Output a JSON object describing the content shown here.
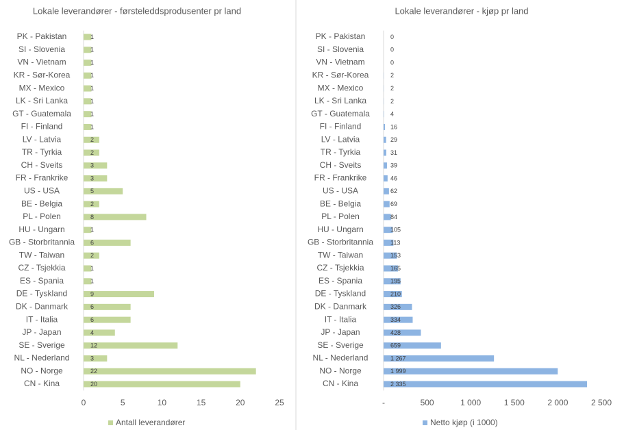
{
  "chart_data": [
    {
      "type": "bar",
      "orientation": "horizontal",
      "title": "Lokale leverandører - førsteleddsprodusenter pr land",
      "categories": [
        "PK - Pakistan",
        "SI - Slovenia",
        "VN - Vietnam",
        "KR - Sør-Korea",
        "MX - Mexico",
        "LK - Sri Lanka",
        "GT - Guatemala",
        "FI - Finland",
        "LV - Latvia",
        "TR - Tyrkia",
        "CH - Sveits",
        "FR - Frankrike",
        "US - USA",
        "BE - Belgia",
        "PL - Polen",
        "HU - Ungarn",
        "GB - Storbritannia",
        "TW - Taiwan",
        "CZ - Tsjekkia",
        "ES - Spania",
        "DE - Tyskland",
        "DK - Danmark",
        "IT - Italia",
        "JP - Japan",
        "SE - Sverige",
        "NL - Nederland",
        "NO - Norge",
        "CN - Kina"
      ],
      "series": [
        {
          "name": "Antall leverandører",
          "color": "#c4d79b",
          "values": [
            1,
            1,
            1,
            1,
            1,
            1,
            1,
            1,
            2,
            2,
            3,
            3,
            5,
            2,
            8,
            1,
            6,
            2,
            1,
            1,
            9,
            6,
            6,
            4,
            12,
            3,
            22,
            20
          ]
        }
      ],
      "xlim": [
        0,
        25
      ],
      "xticks": [
        0,
        5,
        10,
        15,
        20,
        25
      ],
      "legend": "bottom"
    },
    {
      "type": "bar",
      "orientation": "horizontal",
      "title": "Lokale leverandører - kjøp pr land",
      "categories": [
        "PK - Pakistan",
        "SI - Slovenia",
        "VN - Vietnam",
        "KR - Sør-Korea",
        "MX - Mexico",
        "LK - Sri Lanka",
        "GT - Guatemala",
        "FI - Finland",
        "LV - Latvia",
        "TR - Tyrkia",
        "CH - Sveits",
        "FR - Frankrike",
        "US - USA",
        "BE - Belgia",
        "PL - Polen",
        "HU - Ungarn",
        "GB - Storbritannia",
        "TW - Taiwan",
        "CZ - Tsjekkia",
        "ES - Spania",
        "DE - Tyskland",
        "DK - Danmark",
        "IT - Italia",
        "JP - Japan",
        "SE - Sverige",
        "NL - Nederland",
        "NO - Norge",
        "CN - Kina"
      ],
      "series": [
        {
          "name": "Netto kjøp (i 1000)",
          "color": "#8db4e2",
          "values": [
            0,
            0,
            0,
            2,
            2,
            2,
            4,
            16,
            29,
            31,
            39,
            46,
            62,
            69,
            84,
            105,
            113,
            153,
            165,
            195,
            210,
            326,
            334,
            428,
            659,
            1267,
            1999,
            2335
          ],
          "value_labels": [
            "0",
            "0",
            "0",
            "2",
            "2",
            "2",
            "4",
            "16",
            "29",
            "31",
            "39",
            "46",
            "62",
            "69",
            "84",
            "105",
            "113",
            "153",
            "165",
            "195",
            "210",
            "326",
            "334",
            "428",
            "659",
            "1 267",
            "1 999",
            "2 335"
          ]
        }
      ],
      "xlim": [
        0,
        2500
      ],
      "xticks": [
        {
          "value": 0,
          "label": "-"
        },
        500,
        {
          "value": 1000,
          "label": "1 000"
        },
        {
          "value": 1500,
          "label": "1 500"
        },
        {
          "value": 2000,
          "label": "2 000"
        },
        {
          "value": 2500,
          "label": "2 500"
        }
      ],
      "legend": "bottom"
    }
  ]
}
